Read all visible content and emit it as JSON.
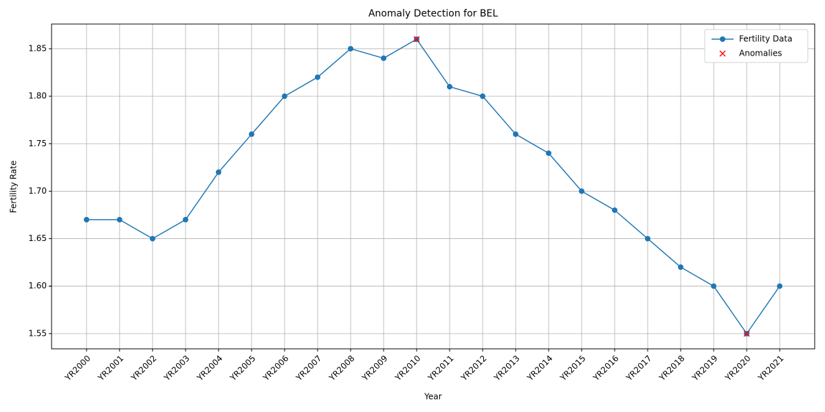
{
  "chart_data": {
    "type": "line",
    "title": "Anomaly Detection for BEL",
    "x_label": "Year",
    "y_label": "Fertility Rate",
    "categories": [
      "YR2000",
      "YR2001",
      "YR2002",
      "YR2003",
      "YR2004",
      "YR2005",
      "YR2006",
      "YR2007",
      "YR2008",
      "YR2009",
      "YR2010",
      "YR2011",
      "YR2012",
      "YR2013",
      "YR2014",
      "YR2015",
      "YR2016",
      "YR2017",
      "YR2018",
      "YR2019",
      "YR2020",
      "YR2021"
    ],
    "series": [
      {
        "name": "Fertility Data",
        "color": "#1f77b4",
        "marker": "o",
        "values": [
          1.67,
          1.67,
          1.65,
          1.67,
          1.72,
          1.76,
          1.8,
          1.82,
          1.85,
          1.84,
          1.86,
          1.81,
          1.8,
          1.76,
          1.74,
          1.7,
          1.68,
          1.65,
          1.62,
          1.6,
          1.55,
          1.6
        ]
      },
      {
        "name": "Anomalies",
        "color": "#ff0000",
        "marker": "x",
        "values": [
          null,
          null,
          null,
          null,
          null,
          null,
          null,
          null,
          null,
          null,
          1.86,
          null,
          null,
          null,
          null,
          null,
          null,
          null,
          null,
          null,
          1.55,
          null
        ]
      }
    ],
    "ylim": [
      1.534,
      1.876
    ],
    "yticks": [
      1.55,
      1.6,
      {
        "value": 1.6,
        "label": "1.60"
      },
      1.65,
      {
        "value": 1.7,
        "label": "1.70"
      },
      1.75,
      {
        "value": 1.8,
        "label": "1.80"
      },
      1.85
    ],
    "grid": true,
    "legend": "upper right"
  }
}
